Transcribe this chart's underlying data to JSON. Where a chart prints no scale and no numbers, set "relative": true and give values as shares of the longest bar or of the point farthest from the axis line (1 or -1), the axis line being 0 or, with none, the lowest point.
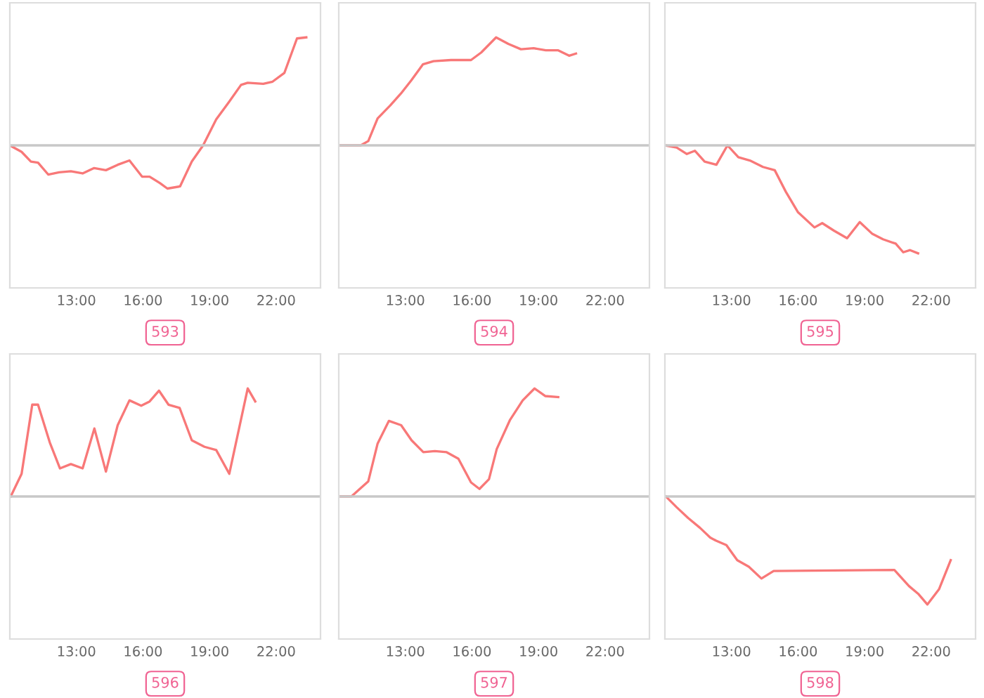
{
  "chart_data": [
    {
      "type": "line",
      "relative": true,
      "color": "#f87878",
      "xlabel": "593",
      "xlim": [
        10,
        24
      ],
      "xticks": [
        {
          "value": 13,
          "label": "13:00"
        },
        {
          "value": 16,
          "label": "16:00"
        },
        {
          "value": 19,
          "label": "19:00"
        },
        {
          "value": 22,
          "label": "22:00"
        }
      ],
      "tick_labels": "x",
      "x": [
        10.0,
        10.53,
        10.95,
        11.27,
        11.73,
        12.22,
        12.75,
        13.28,
        13.8,
        14.33,
        14.86,
        15.39,
        15.96,
        16.3,
        16.77,
        17.1,
        17.67,
        18.2,
        18.71,
        19.3,
        19.87,
        20.42,
        20.72,
        21.42,
        21.84,
        22.37,
        22.94,
        23.36
      ],
      "values": [
        0,
        -0.06,
        -0.15,
        -0.16,
        -0.27,
        -0.25,
        -0.24,
        -0.26,
        -0.21,
        -0.23,
        -0.18,
        -0.14,
        -0.29,
        -0.29,
        -0.35,
        -0.4,
        -0.38,
        -0.15,
        0,
        0.24,
        0.4,
        0.56,
        0.58,
        0.57,
        0.59,
        0.67,
        0.99,
        1.0
      ]
    },
    {
      "type": "line",
      "relative": true,
      "color": "#f87878",
      "xlabel": "594",
      "xlim": [
        10,
        24
      ],
      "xticks": [
        {
          "value": 13,
          "label": "13:00"
        },
        {
          "value": 16,
          "label": "16:00"
        },
        {
          "value": 19,
          "label": "19:00"
        },
        {
          "value": 22,
          "label": "22:00"
        }
      ],
      "tick_labels": "x",
      "x": [
        10.0,
        10.53,
        10.99,
        11.33,
        11.75,
        12.32,
        12.8,
        13.26,
        13.79,
        14.27,
        15.05,
        15.96,
        16.42,
        17.09,
        17.64,
        18.21,
        18.78,
        19.33,
        19.89,
        20.38,
        20.69
      ],
      "values": [
        0,
        0,
        0,
        0.04,
        0.25,
        0.37,
        0.48,
        0.6,
        0.75,
        0.78,
        0.79,
        0.79,
        0.86,
        1.0,
        0.94,
        0.89,
        0.9,
        0.88,
        0.88,
        0.83,
        0.85
      ]
    },
    {
      "type": "line",
      "relative": true,
      "color": "#f87878",
      "xlabel": "595",
      "xlim": [
        10,
        24
      ],
      "xticks": [
        {
          "value": 13,
          "label": "13:00"
        },
        {
          "value": 16,
          "label": "16:00"
        },
        {
          "value": 19,
          "label": "19:00"
        },
        {
          "value": 22,
          "label": "22:00"
        }
      ],
      "tick_labels": "x",
      "x": [
        10.0,
        10.53,
        10.99,
        11.35,
        11.79,
        12.32,
        12.82,
        13.31,
        13.83,
        14.42,
        14.95,
        15.45,
        16.0,
        16.74,
        17.09,
        17.62,
        18.21,
        18.78,
        19.35,
        19.83,
        20.4,
        20.74,
        21.05,
        21.41
      ],
      "values": [
        0,
        -0.02,
        -0.08,
        -0.05,
        -0.15,
        -0.18,
        0,
        -0.11,
        -0.14,
        -0.2,
        -0.23,
        -0.43,
        -0.62,
        -0.76,
        -0.72,
        -0.79,
        -0.86,
        -0.71,
        -0.82,
        -0.87,
        -0.91,
        -0.99,
        -0.97,
        -1.0
      ]
    },
    {
      "type": "line",
      "relative": true,
      "color": "#f87878",
      "xlabel": "596",
      "xlim": [
        10,
        24
      ],
      "xticks": [
        {
          "value": 13,
          "label": "13:00"
        },
        {
          "value": 16,
          "label": "16:00"
        },
        {
          "value": 19,
          "label": "19:00"
        },
        {
          "value": 22,
          "label": "22:00"
        }
      ],
      "tick_labels": "x",
      "x": [
        10.04,
        10.53,
        11.01,
        11.27,
        11.8,
        12.26,
        12.75,
        13.28,
        13.81,
        14.33,
        14.86,
        15.39,
        15.92,
        16.3,
        16.72,
        17.15,
        17.65,
        18.2,
        18.77,
        19.3,
        19.89,
        20.72,
        21.06
      ],
      "values": [
        0,
        0.21,
        0.85,
        0.85,
        0.5,
        0.26,
        0.3,
        0.26,
        0.63,
        0.23,
        0.66,
        0.89,
        0.84,
        0.88,
        0.98,
        0.85,
        0.82,
        0.52,
        0.46,
        0.43,
        0.21,
        1.0,
        0.88
      ]
    },
    {
      "type": "line",
      "relative": true,
      "color": "#f87878",
      "xlabel": "597",
      "xlim": [
        10,
        24
      ],
      "xticks": [
        {
          "value": 13,
          "label": "13:00"
        },
        {
          "value": 16,
          "label": "16:00"
        },
        {
          "value": 19,
          "label": "19:00"
        },
        {
          "value": 22,
          "label": "22:00"
        }
      ],
      "tick_labels": "x",
      "x": [
        10.0,
        10.57,
        11.33,
        11.75,
        12.26,
        12.81,
        13.28,
        13.81,
        14.33,
        14.86,
        15.39,
        15.96,
        16.34,
        16.77,
        17.12,
        17.72,
        18.29,
        18.82,
        19.3,
        19.89
      ],
      "values": [
        0,
        0,
        0.14,
        0.49,
        0.7,
        0.66,
        0.52,
        0.41,
        0.42,
        0.41,
        0.35,
        0.13,
        0.07,
        0.16,
        0.44,
        0.71,
        0.89,
        1.0,
        0.93,
        0.92
      ]
    },
    {
      "type": "line",
      "relative": true,
      "color": "#f87878",
      "xlabel": "598",
      "xlim": [
        10,
        24
      ],
      "xticks": [
        {
          "value": 13,
          "label": "13:00"
        },
        {
          "value": 16,
          "label": "16:00"
        },
        {
          "value": 19,
          "label": "19:00"
        },
        {
          "value": 22,
          "label": "22:00"
        }
      ],
      "tick_labels": "x",
      "x": [
        10.04,
        10.53,
        11.05,
        11.58,
        12.04,
        12.31,
        12.77,
        13.26,
        13.78,
        14.35,
        14.9,
        20.34,
        21.0,
        21.41,
        21.83,
        22.35,
        22.88
      ],
      "values": [
        0,
        -0.1,
        -0.2,
        -0.29,
        -0.38,
        -0.41,
        -0.45,
        -0.59,
        -0.65,
        -0.76,
        -0.69,
        -0.68,
        -0.83,
        -0.9,
        -1.0,
        -0.86,
        -0.59
      ]
    }
  ]
}
